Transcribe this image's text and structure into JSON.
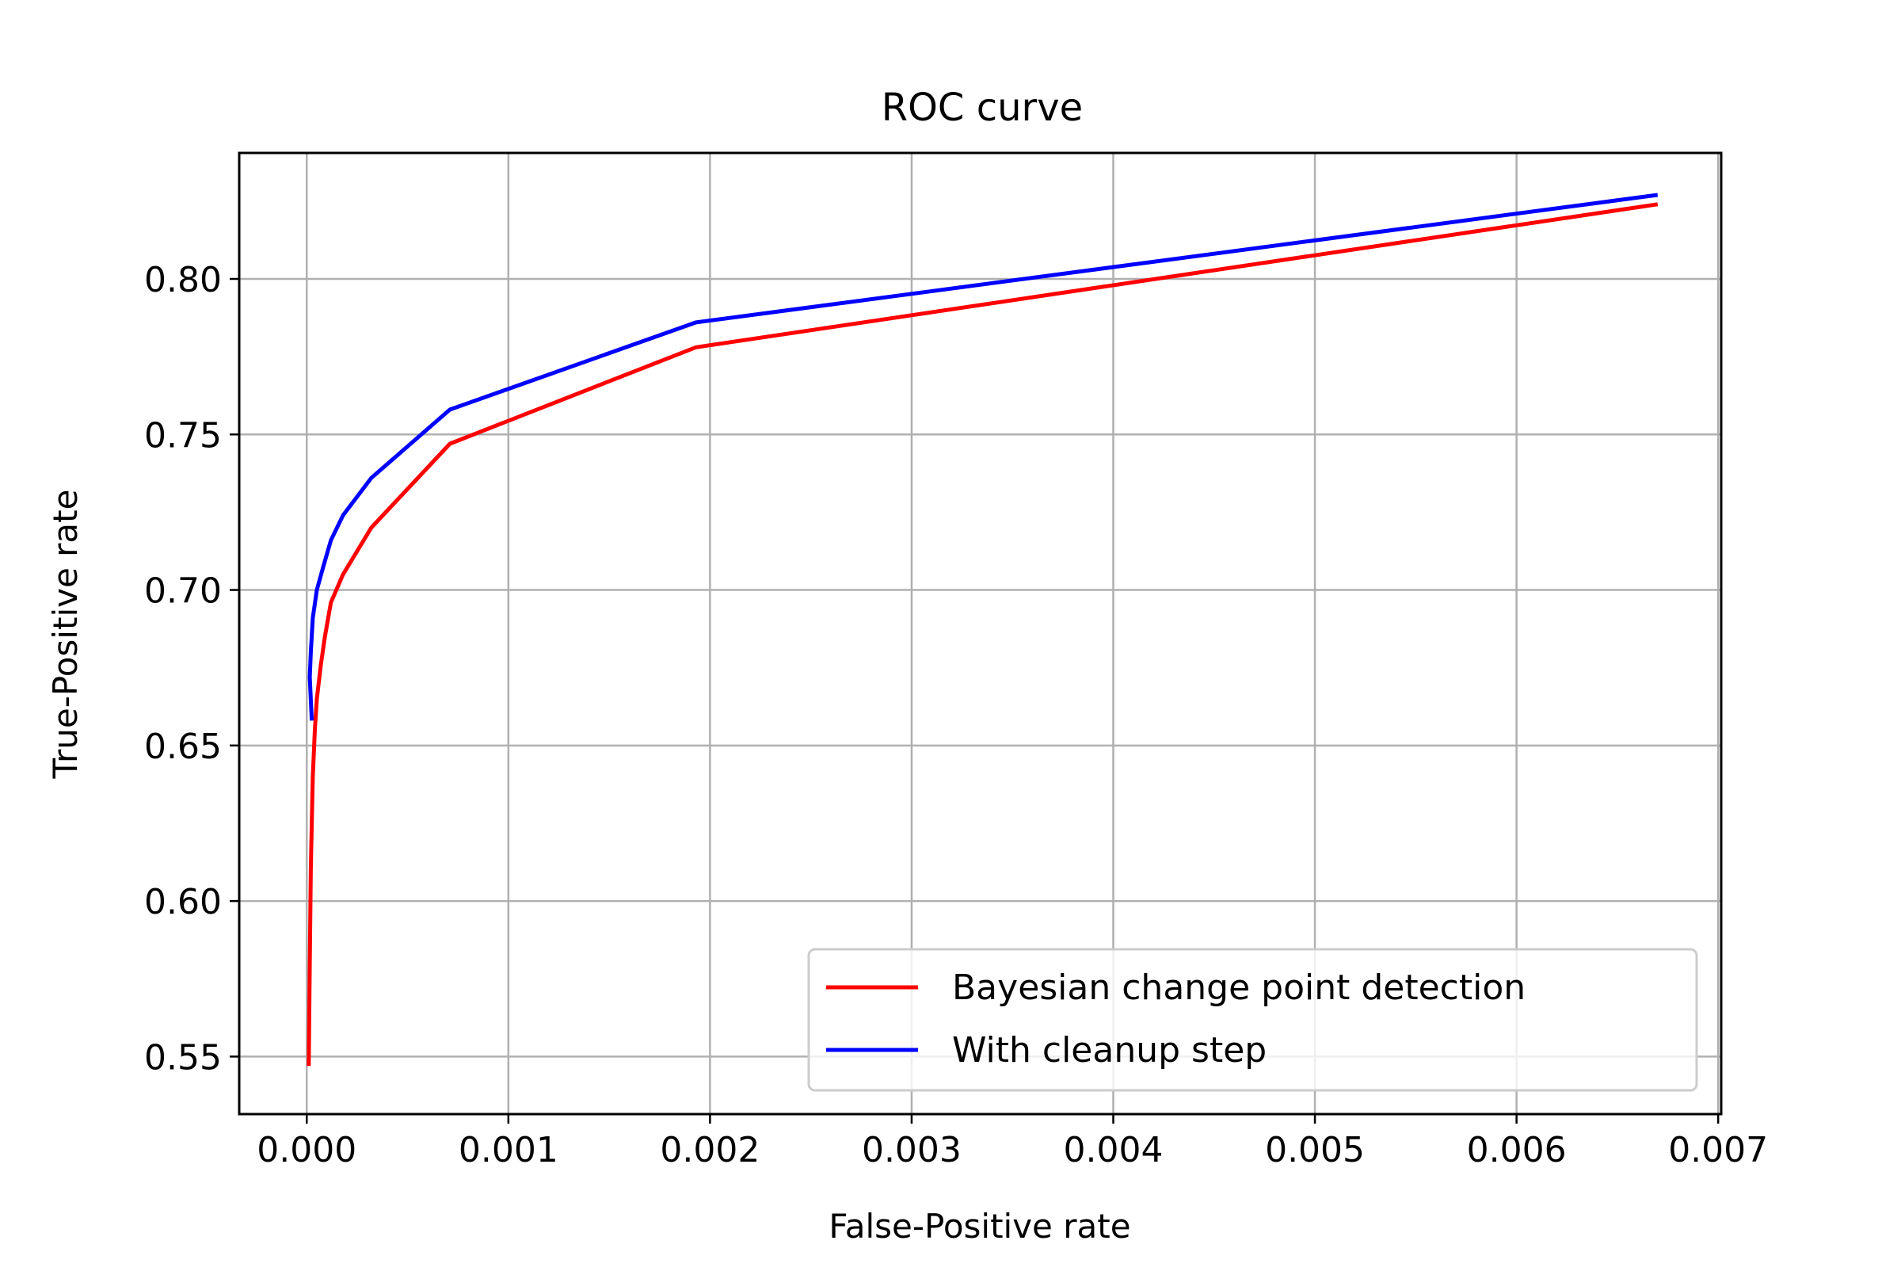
{
  "chart_data": {
    "type": "line",
    "title": "ROC curve",
    "xlabel": "False-Positive rate",
    "ylabel": "True-Positive rate",
    "xlim": [
      -0.000335,
      0.007015
    ],
    "ylim": [
      0.5315,
      0.8405
    ],
    "xticks": [
      0.0,
      0.001,
      0.002,
      0.003,
      0.004,
      0.005,
      0.006,
      0.007
    ],
    "xtick_labels": [
      "0.000",
      "0.001",
      "0.002",
      "0.003",
      "0.004",
      "0.005",
      "0.006",
      "0.007"
    ],
    "yticks": [
      0.55,
      0.6,
      0.65,
      0.7,
      0.75,
      0.8
    ],
    "ytick_labels": [
      "0.55",
      "0.60",
      "0.65",
      "0.70",
      "0.75",
      "0.80"
    ],
    "grid": true,
    "legend_position": "lower-right",
    "series": [
      {
        "name": "Bayesian change point detection",
        "color": "#ff0000",
        "x": [
          1e-05,
          1.2e-05,
          1.5e-05,
          2e-05,
          2.5e-05,
          3e-05,
          4e-05,
          5e-05,
          7e-05,
          9e-05,
          0.00012,
          0.00018,
          0.00032,
          0.00071,
          0.00193,
          0.0067
        ],
        "y": [
          0.547,
          0.56,
          0.58,
          0.61,
          0.625,
          0.64,
          0.655,
          0.665,
          0.676,
          0.685,
          0.696,
          0.705,
          0.72,
          0.747,
          0.778,
          0.824
        ]
      },
      {
        "name": "With cleanup step",
        "color": "#0000ff",
        "x": [
          2.5e-05,
          1.5e-05,
          2e-05,
          3e-05,
          5e-05,
          8e-05,
          0.00012,
          0.00018,
          0.00032,
          0.00071,
          0.00193,
          0.0067
        ],
        "y": [
          0.658,
          0.672,
          0.68,
          0.691,
          0.7,
          0.707,
          0.716,
          0.724,
          0.736,
          0.758,
          0.786,
          0.827
        ]
      }
    ]
  }
}
